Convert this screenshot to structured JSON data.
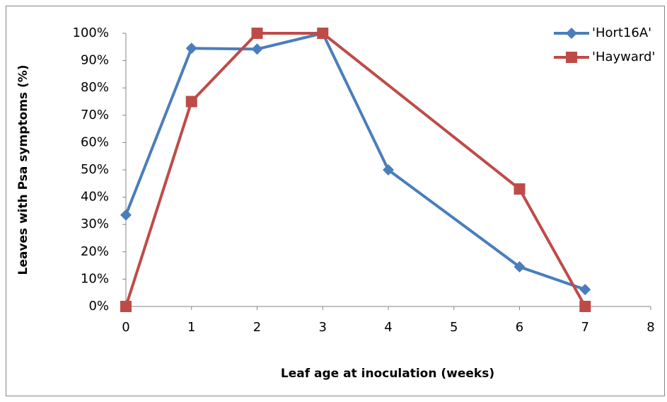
{
  "chart_data": {
    "type": "line",
    "x_label": "Leaf age at inoculation (weeks)",
    "y_label": "Leaves with Psa symptoms (%)",
    "xlim": [
      0,
      8
    ],
    "xticks": [
      0,
      1,
      2,
      3,
      4,
      5,
      6,
      7,
      8
    ],
    "ylim": [
      0,
      100
    ],
    "yticks": [
      {
        "value": 0,
        "label": "0%"
      },
      {
        "value": 10,
        "label": "10%"
      },
      {
        "value": 20,
        "label": "20%"
      },
      {
        "value": 30,
        "label": "30%"
      },
      {
        "value": 40,
        "label": "40%"
      },
      {
        "value": 50,
        "label": "50%"
      },
      {
        "value": 60,
        "label": "60%"
      },
      {
        "value": 70,
        "label": "70%"
      },
      {
        "value": 80,
        "label": "80%"
      },
      {
        "value": 90,
        "label": "90%"
      },
      {
        "value": 100,
        "label": "100%"
      }
    ],
    "legend": "top-right",
    "series": [
      {
        "name": "'Hort16A'",
        "color": "#4a7ebb",
        "marker": "diamond",
        "x": [
          0,
          1,
          2,
          3,
          4,
          6,
          7
        ],
        "values": [
          33.5,
          94.5,
          94.2,
          100,
          50,
          14.5,
          6.2
        ]
      },
      {
        "name": "'Hayward'",
        "color": "#be4b48",
        "marker": "square",
        "x": [
          0,
          1,
          2,
          3,
          6,
          7
        ],
        "values": [
          0,
          75,
          100,
          100,
          43,
          0
        ]
      }
    ]
  }
}
